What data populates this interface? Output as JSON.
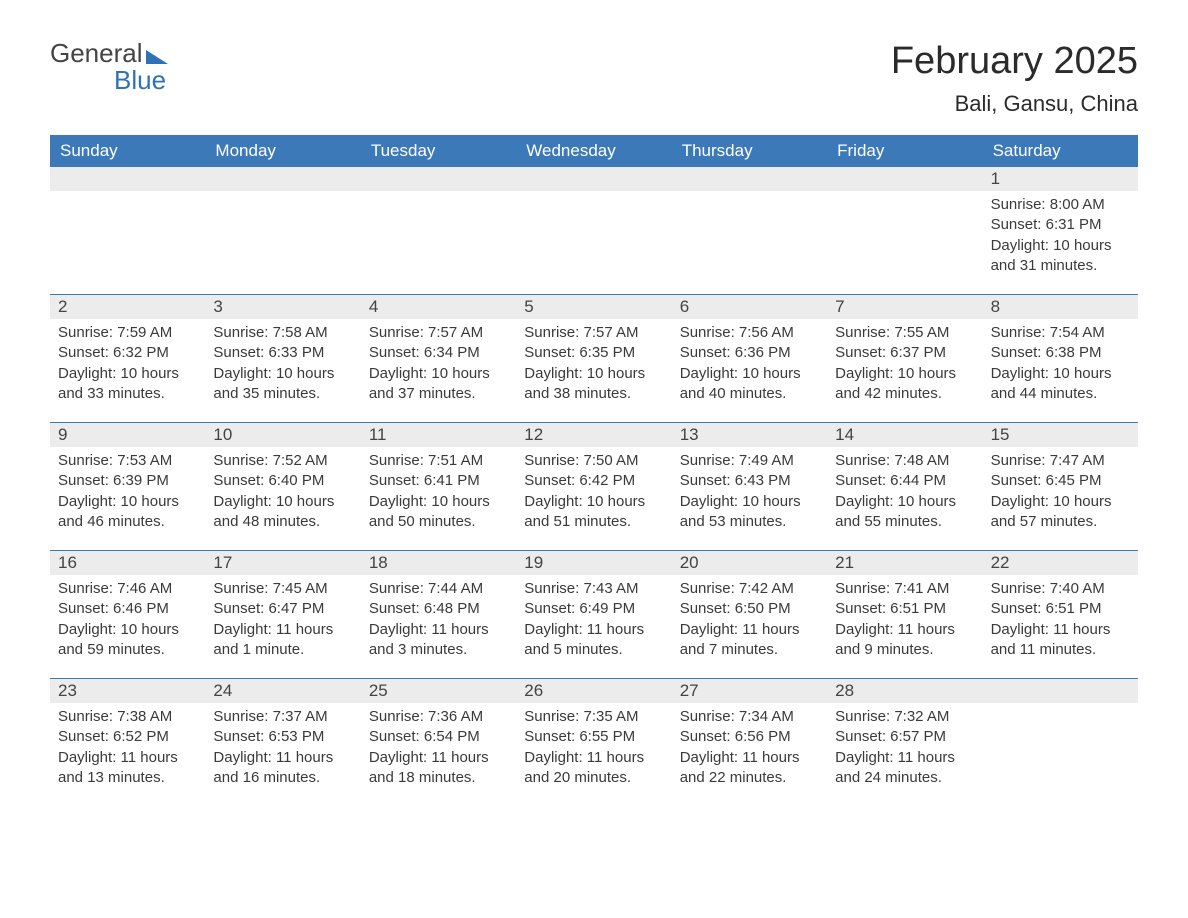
{
  "logo": {
    "word1": "General",
    "word2": "Blue"
  },
  "title": "February 2025",
  "location": "Bali, Gansu, China",
  "colors": {
    "header_bg": "#3b79b8",
    "header_text": "#ffffff",
    "daynum_bg": "#ececec",
    "divider": "#3b79b8",
    "body_text": "#3a3a3a",
    "logo_accent": "#2f72b6",
    "page_bg": "#ffffff"
  },
  "typography": {
    "title_fontsize": 38,
    "location_fontsize": 22,
    "dayhead_fontsize": 17,
    "daynum_fontsize": 17,
    "cell_fontsize": 15,
    "logo_fontsize": 26
  },
  "day_headers": [
    "Sunday",
    "Monday",
    "Tuesday",
    "Wednesday",
    "Thursday",
    "Friday",
    "Saturday"
  ],
  "weeks": [
    [
      {
        "day": "",
        "sunrise": "",
        "sunset": "",
        "daylight": ""
      },
      {
        "day": "",
        "sunrise": "",
        "sunset": "",
        "daylight": ""
      },
      {
        "day": "",
        "sunrise": "",
        "sunset": "",
        "daylight": ""
      },
      {
        "day": "",
        "sunrise": "",
        "sunset": "",
        "daylight": ""
      },
      {
        "day": "",
        "sunrise": "",
        "sunset": "",
        "daylight": ""
      },
      {
        "day": "",
        "sunrise": "",
        "sunset": "",
        "daylight": ""
      },
      {
        "day": "1",
        "sunrise": "Sunrise: 8:00 AM",
        "sunset": "Sunset: 6:31 PM",
        "daylight": "Daylight: 10 hours and 31 minutes."
      }
    ],
    [
      {
        "day": "2",
        "sunrise": "Sunrise: 7:59 AM",
        "sunset": "Sunset: 6:32 PM",
        "daylight": "Daylight: 10 hours and 33 minutes."
      },
      {
        "day": "3",
        "sunrise": "Sunrise: 7:58 AM",
        "sunset": "Sunset: 6:33 PM",
        "daylight": "Daylight: 10 hours and 35 minutes."
      },
      {
        "day": "4",
        "sunrise": "Sunrise: 7:57 AM",
        "sunset": "Sunset: 6:34 PM",
        "daylight": "Daylight: 10 hours and 37 minutes."
      },
      {
        "day": "5",
        "sunrise": "Sunrise: 7:57 AM",
        "sunset": "Sunset: 6:35 PM",
        "daylight": "Daylight: 10 hours and 38 minutes."
      },
      {
        "day": "6",
        "sunrise": "Sunrise: 7:56 AM",
        "sunset": "Sunset: 6:36 PM",
        "daylight": "Daylight: 10 hours and 40 minutes."
      },
      {
        "day": "7",
        "sunrise": "Sunrise: 7:55 AM",
        "sunset": "Sunset: 6:37 PM",
        "daylight": "Daylight: 10 hours and 42 minutes."
      },
      {
        "day": "8",
        "sunrise": "Sunrise: 7:54 AM",
        "sunset": "Sunset: 6:38 PM",
        "daylight": "Daylight: 10 hours and 44 minutes."
      }
    ],
    [
      {
        "day": "9",
        "sunrise": "Sunrise: 7:53 AM",
        "sunset": "Sunset: 6:39 PM",
        "daylight": "Daylight: 10 hours and 46 minutes."
      },
      {
        "day": "10",
        "sunrise": "Sunrise: 7:52 AM",
        "sunset": "Sunset: 6:40 PM",
        "daylight": "Daylight: 10 hours and 48 minutes."
      },
      {
        "day": "11",
        "sunrise": "Sunrise: 7:51 AM",
        "sunset": "Sunset: 6:41 PM",
        "daylight": "Daylight: 10 hours and 50 minutes."
      },
      {
        "day": "12",
        "sunrise": "Sunrise: 7:50 AM",
        "sunset": "Sunset: 6:42 PM",
        "daylight": "Daylight: 10 hours and 51 minutes."
      },
      {
        "day": "13",
        "sunrise": "Sunrise: 7:49 AM",
        "sunset": "Sunset: 6:43 PM",
        "daylight": "Daylight: 10 hours and 53 minutes."
      },
      {
        "day": "14",
        "sunrise": "Sunrise: 7:48 AM",
        "sunset": "Sunset: 6:44 PM",
        "daylight": "Daylight: 10 hours and 55 minutes."
      },
      {
        "day": "15",
        "sunrise": "Sunrise: 7:47 AM",
        "sunset": "Sunset: 6:45 PM",
        "daylight": "Daylight: 10 hours and 57 minutes."
      }
    ],
    [
      {
        "day": "16",
        "sunrise": "Sunrise: 7:46 AM",
        "sunset": "Sunset: 6:46 PM",
        "daylight": "Daylight: 10 hours and 59 minutes."
      },
      {
        "day": "17",
        "sunrise": "Sunrise: 7:45 AM",
        "sunset": "Sunset: 6:47 PM",
        "daylight": "Daylight: 11 hours and 1 minute."
      },
      {
        "day": "18",
        "sunrise": "Sunrise: 7:44 AM",
        "sunset": "Sunset: 6:48 PM",
        "daylight": "Daylight: 11 hours and 3 minutes."
      },
      {
        "day": "19",
        "sunrise": "Sunrise: 7:43 AM",
        "sunset": "Sunset: 6:49 PM",
        "daylight": "Daylight: 11 hours and 5 minutes."
      },
      {
        "day": "20",
        "sunrise": "Sunrise: 7:42 AM",
        "sunset": "Sunset: 6:50 PM",
        "daylight": "Daylight: 11 hours and 7 minutes."
      },
      {
        "day": "21",
        "sunrise": "Sunrise: 7:41 AM",
        "sunset": "Sunset: 6:51 PM",
        "daylight": "Daylight: 11 hours and 9 minutes."
      },
      {
        "day": "22",
        "sunrise": "Sunrise: 7:40 AM",
        "sunset": "Sunset: 6:51 PM",
        "daylight": "Daylight: 11 hours and 11 minutes."
      }
    ],
    [
      {
        "day": "23",
        "sunrise": "Sunrise: 7:38 AM",
        "sunset": "Sunset: 6:52 PM",
        "daylight": "Daylight: 11 hours and 13 minutes."
      },
      {
        "day": "24",
        "sunrise": "Sunrise: 7:37 AM",
        "sunset": "Sunset: 6:53 PM",
        "daylight": "Daylight: 11 hours and 16 minutes."
      },
      {
        "day": "25",
        "sunrise": "Sunrise: 7:36 AM",
        "sunset": "Sunset: 6:54 PM",
        "daylight": "Daylight: 11 hours and 18 minutes."
      },
      {
        "day": "26",
        "sunrise": "Sunrise: 7:35 AM",
        "sunset": "Sunset: 6:55 PM",
        "daylight": "Daylight: 11 hours and 20 minutes."
      },
      {
        "day": "27",
        "sunrise": "Sunrise: 7:34 AM",
        "sunset": "Sunset: 6:56 PM",
        "daylight": "Daylight: 11 hours and 22 minutes."
      },
      {
        "day": "28",
        "sunrise": "Sunrise: 7:32 AM",
        "sunset": "Sunset: 6:57 PM",
        "daylight": "Daylight: 11 hours and 24 minutes."
      },
      {
        "day": "",
        "sunrise": "",
        "sunset": "",
        "daylight": ""
      }
    ]
  ]
}
